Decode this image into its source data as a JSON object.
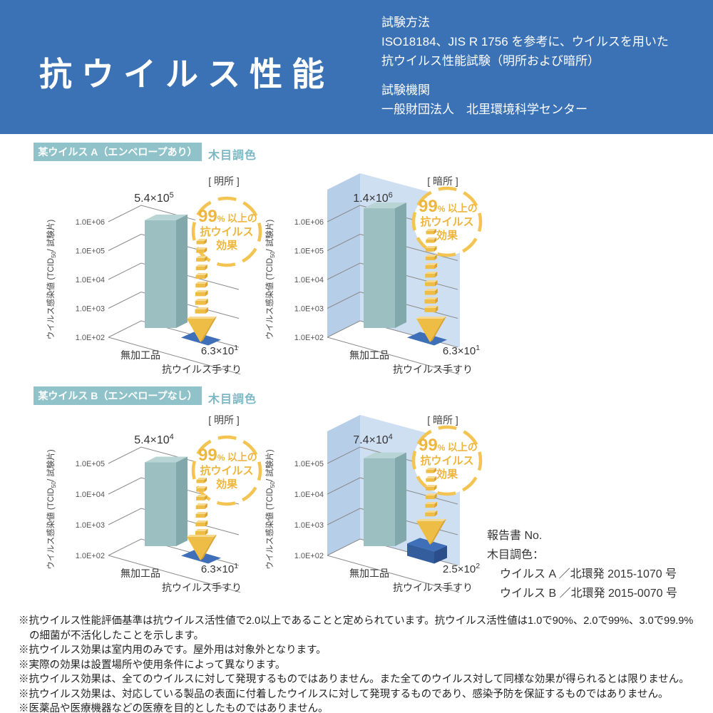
{
  "header": {
    "title": "抗ウイルス性能",
    "method_label": "試験方法",
    "method_line1": "ISO18184、JIS R 1756 を参考に、ウイルスを用いた",
    "method_line2": "抗ウイルス性能試験（明所および暗所）",
    "org_label": "試験機関",
    "org_name": "一般財団法人　北里環境科学センター"
  },
  "sections": [
    {
      "badge": "某ウイルス A（エンベロープあり）",
      "tone": "木目調色"
    },
    {
      "badge": "某ウイルス B（エンベロープなし）",
      "tone": "木目調色"
    }
  ],
  "report": {
    "line1": "報告書 No.",
    "line2": "木目調色：",
    "line3": "ウイルス A ／北環発 2015-1070 号",
    "line4": "ウイルス B ／北環発 2015-0070 号"
  },
  "footnotes": [
    "※抗ウイルス性能評価基準は抗ウイルス活性値で2.0以上であることと定められています。抗ウイルス活性値は1.0で90%、2.0で99%、3.0で99.9%の細菌が不活化したことを示します。",
    "※抗ウイルス効果は室内用のみです。屋外用は対象外となります。",
    "※実際の効果は設置場所や使用条件によって異なります。",
    "※抗ウイルス効果は、全てのウイルスに対して発現するものではありません。また全てのウイルス対して同様な効果が得られるとは限りません。",
    "※抗ウイルス効果は、対応している製品の表面に付着したウイルスに対して発現するものであり、感染予防を保証するものではありません。",
    "※医薬品や医療機器などの医療を目的としたものではありません。"
  ],
  "colors": {
    "header_blue": "#3a72b5",
    "section_teal": "#8fc2c9",
    "bar_front": "#9cc0c2",
    "bar_top": "#b9d4d4",
    "bar_side": "#81a9ab",
    "tile_blue": "#3f6fb8",
    "arrow_yellow": "#eebd45",
    "badge_gold": "#eeb63e",
    "wall_left": "#b7cee9",
    "wall_back": "#cfdff2",
    "grid_gray": "#8a8a8a"
  },
  "chart_data": [
    {
      "id": "virus-a-light",
      "type": "bar",
      "dark": false,
      "group": "某ウイルス A（エンベロープあり）",
      "condition_label": "[ 明所 ]",
      "categories": [
        "無加工品",
        "抗ウイルス手すり"
      ],
      "values": [
        540000,
        63
      ],
      "bar_label": {
        "coef": "5.4×10",
        "exp": "5"
      },
      "result_label": {
        "coef": "6.3×10",
        "exp": "1"
      },
      "yticks": [
        "1.0E+06",
        "1.0E+05",
        "1.0E+04",
        "1.0E+03",
        "1.0E+02"
      ],
      "ylim": [
        100,
        1000000
      ],
      "ylabel_parts": [
        "ウイルス感染値 (TCID",
        "50",
        "/ 試験片)"
      ],
      "badge": {
        "percent": "99",
        "pct_sign": "%",
        "suffix": "以上の",
        "line2": "抗ウイルス",
        "line3": "効果"
      }
    },
    {
      "id": "virus-a-dark",
      "type": "bar",
      "dark": true,
      "group": "某ウイルス A（エンベロープあり）",
      "condition_label": "[ 暗所 ]",
      "categories": [
        "無加工品",
        "抗ウイルス手すり"
      ],
      "values": [
        1400000,
        63
      ],
      "bar_label": {
        "coef": "1.4×10",
        "exp": "6"
      },
      "result_label": {
        "coef": "6.3×10",
        "exp": "1"
      },
      "yticks": [
        "1.0E+06",
        "1.0E+05",
        "1.0E+04",
        "1.0E+03",
        "1.0E+02"
      ],
      "ylim": [
        100,
        1000000
      ],
      "ylabel_parts": [
        "ウイルス感染値 (TCID",
        "50",
        "/ 試験片)"
      ],
      "badge": {
        "percent": "99",
        "pct_sign": "%",
        "suffix": "以上の",
        "line2": "抗ウイルス",
        "line3": "効果"
      }
    },
    {
      "id": "virus-b-light",
      "type": "bar",
      "dark": false,
      "group": "某ウイルス B（エンベロープなし）",
      "condition_label": "[ 明所 ]",
      "categories": [
        "無加工品",
        "抗ウイルス手すり"
      ],
      "values": [
        54000,
        63
      ],
      "bar_label": {
        "coef": "5.4×10",
        "exp": "4"
      },
      "result_label": {
        "coef": "6.3×10",
        "exp": "1"
      },
      "yticks": [
        "1.0E+05",
        "1.0E+04",
        "1.0E+03",
        "1.0E+02"
      ],
      "ylim": [
        100,
        100000
      ],
      "ylabel_parts": [
        "ウイルス感染値 (TCID",
        "50",
        "/ 試験片)"
      ],
      "badge": {
        "percent": "99",
        "pct_sign": "%",
        "suffix": "以上の",
        "line2": "抗ウイルス",
        "line3": "効果"
      }
    },
    {
      "id": "virus-b-dark",
      "type": "bar",
      "dark": true,
      "group": "某ウイルス B（エンベロープなし）",
      "condition_label": "[ 暗所 ]",
      "categories": [
        "無加工品",
        "抗ウイルス手すり"
      ],
      "values": [
        74000,
        250
      ],
      "bar_label": {
        "coef": "7.4×10",
        "exp": "4"
      },
      "result_label": {
        "coef": "2.5×10",
        "exp": "2"
      },
      "yticks": [
        "1.0E+05",
        "1.0E+04",
        "1.0E+03",
        "1.0E+02"
      ],
      "ylim": [
        100,
        100000
      ],
      "ylabel_parts": [
        "ウイルス感染値 (TCID",
        "50",
        "/ 試験片)"
      ],
      "badge": {
        "percent": "99",
        "pct_sign": "%",
        "suffix": "以上の",
        "line2": "抗ウイルス",
        "line3": "効果"
      }
    }
  ]
}
